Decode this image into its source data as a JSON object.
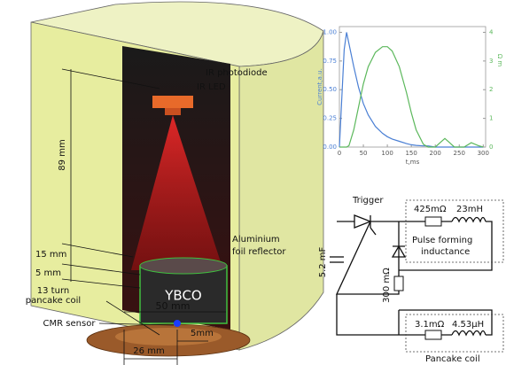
{
  "chart_data": {
    "type": "line",
    "xlabel": "t,ms",
    "ylabel": "Current,a.u.",
    "y2label": "Ω m",
    "x": [
      0,
      10,
      15,
      20,
      30,
      40,
      50,
      60,
      75,
      90,
      100,
      110,
      125,
      140,
      150,
      160,
      175,
      185,
      200,
      210,
      220,
      230,
      240,
      260,
      275,
      290,
      300
    ],
    "series": [
      {
        "color": "#4a7fd4",
        "values": [
          0,
          0.85,
          1,
          0.9,
          0.7,
          0.52,
          0.38,
          0.28,
          0.18,
          0.12,
          0.09,
          0.07,
          0.05,
          0.03,
          0.02,
          0.015,
          0.01,
          0.01,
          0,
          0,
          0,
          0,
          0,
          0,
          0,
          0,
          0
        ]
      },
      {
        "color": "#5cb85c",
        "axis": "y2",
        "values": [
          0,
          0,
          0,
          0.05,
          0.6,
          1.4,
          2.2,
          2.8,
          3.3,
          3.5,
          3.5,
          3.35,
          2.8,
          1.9,
          1.2,
          0.6,
          0.1,
          0,
          0,
          0.15,
          0.3,
          0.15,
          0,
          0,
          0.15,
          0.05,
          0
        ]
      }
    ],
    "xlim": [
      0,
      305
    ],
    "xticks": [
      0,
      50,
      100,
      150,
      200,
      250,
      300
    ],
    "ylim": [
      0,
      1.05
    ],
    "yticks": [
      {
        "value": 0,
        "label": "0.00"
      },
      {
        "value": 0.25,
        "label": "0.25"
      },
      {
        "value": 0.5,
        "label": "0.50"
      },
      {
        "value": 0.75,
        "label": "0.75"
      },
      {
        "value": 1,
        "label": "1.00"
      }
    ],
    "y2lim": [
      0,
      4.2
    ],
    "y2ticks": [
      0,
      1,
      2,
      3,
      4
    ]
  },
  "diagram": {
    "labels": [
      "IR photodiode",
      "IR LED",
      "89 mm",
      "15 mm",
      "5 mm",
      "Aluminium",
      "foil reflector",
      "YBCO",
      "50 mm",
      "13 turn",
      "pancake coil",
      "CMR sensor",
      "26 mm",
      "5mm"
    ],
    "circuit": [
      "Trigger",
      "425mΩ",
      "23mH",
      "Pulse forming",
      "inductance",
      "5.2 mF",
      "300 mΩ",
      "3.1mΩ",
      "4.53µH",
      "Pancake coil"
    ]
  }
}
